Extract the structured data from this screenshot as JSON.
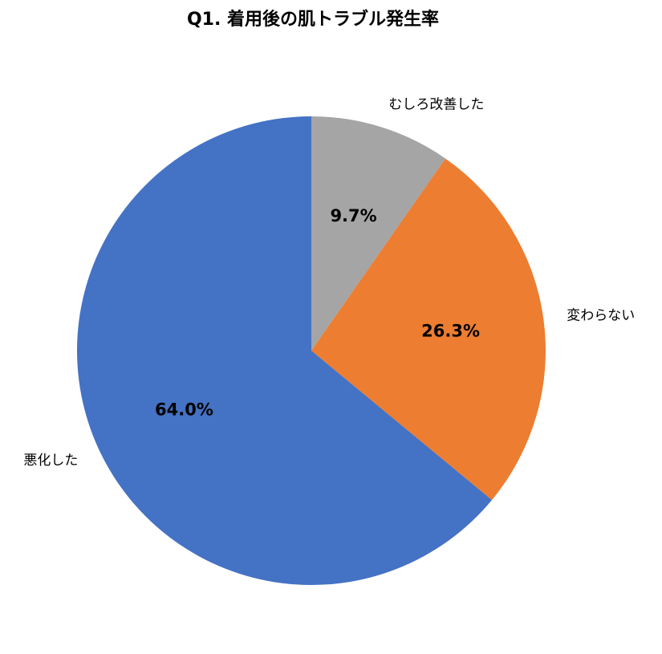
{
  "chart_data": {
    "type": "pie",
    "title": "Q1. 着用後の肌トラブル発生率",
    "categories": [
      "むしろ改善した",
      "変わらない",
      "悪化した"
    ],
    "values": [
      9.7,
      26.3,
      64.0
    ],
    "value_labels": [
      "9.7%",
      "26.3%",
      "64.0%"
    ],
    "colors": [
      "#a5a5a5",
      "#ed7d31",
      "#4472c4"
    ]
  }
}
